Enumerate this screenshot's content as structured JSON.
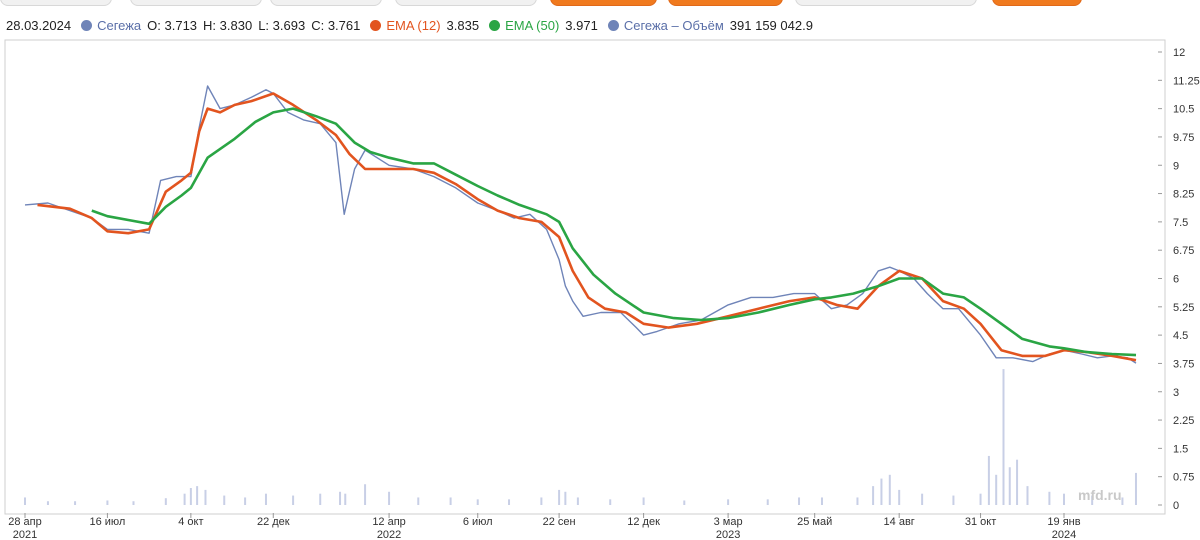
{
  "legend": {
    "date": "28.03.2024",
    "price": {
      "name": "Сегежа",
      "color": "#6f84b8",
      "o": "O: 3.713",
      "h": "H: 3.830",
      "l": "L: 3.693",
      "c": "C: 3.761"
    },
    "ema12": {
      "name": "EMA (12)",
      "value": "3.835",
      "color": "#e2541f"
    },
    "ema50": {
      "name": "EMA (50)",
      "value": "3.971",
      "color": "#2aa544"
    },
    "volume": {
      "name": "Сегежа – Объём",
      "value": "391 159 042.9",
      "color": "#6f84b8"
    }
  },
  "watermark": "mfd.ru",
  "chart_data": {
    "type": "line",
    "y_ticks": [
      "12",
      "11.25",
      "10.5",
      "9.75",
      "9",
      "8.25",
      "7.5",
      "6.75",
      "6",
      "5.25",
      "4.5",
      "3.75",
      "3",
      "2.25",
      "1.5",
      "0.75",
      "0"
    ],
    "ylim": [
      0,
      12
    ],
    "x_ticks": [
      {
        "label": "28 апр",
        "year": "2021"
      },
      {
        "label": "16 июл",
        "year": ""
      },
      {
        "label": "4 окт",
        "year": ""
      },
      {
        "label": "22 дек",
        "year": ""
      },
      {
        "label": "12 апр",
        "year": "2022"
      },
      {
        "label": "6 июл",
        "year": ""
      },
      {
        "label": "22 сен",
        "year": ""
      },
      {
        "label": "12 дек",
        "year": ""
      },
      {
        "label": "3 мар",
        "year": "2023"
      },
      {
        "label": "25 май",
        "year": ""
      },
      {
        "label": "14 авг",
        "year": ""
      },
      {
        "label": "31 окт",
        "year": ""
      },
      {
        "label": "19 янв",
        "year": "2024"
      }
    ],
    "series": [
      {
        "name": "Сегежа",
        "color": "#6f84b8",
        "x": [
          "2021-04-28",
          "2021-05-20",
          "2021-06-10",
          "2021-07-01",
          "2021-07-16",
          "2021-08-05",
          "2021-08-25",
          "2021-09-05",
          "2021-09-20",
          "2021-10-04",
          "2021-10-12",
          "2021-10-20",
          "2021-11-01",
          "2021-11-15",
          "2021-12-01",
          "2021-12-15",
          "2021-12-22",
          "2022-01-05",
          "2022-01-20",
          "2022-02-05",
          "2022-02-20",
          "2022-02-28",
          "2022-03-10",
          "2022-03-20",
          "2022-04-12",
          "2022-05-05",
          "2022-05-25",
          "2022-06-15",
          "2022-07-06",
          "2022-07-25",
          "2022-08-10",
          "2022-08-25",
          "2022-09-10",
          "2022-09-22",
          "2022-09-28",
          "2022-10-05",
          "2022-10-15",
          "2022-11-01",
          "2022-11-20",
          "2022-12-05",
          "2022-12-12",
          "2022-12-25",
          "2023-01-15",
          "2023-02-05",
          "2023-03-03",
          "2023-03-25",
          "2023-04-15",
          "2023-05-05",
          "2023-05-25",
          "2023-06-10",
          "2023-06-25",
          "2023-07-10",
          "2023-07-25",
          "2023-08-05",
          "2023-08-14",
          "2023-08-28",
          "2023-09-10",
          "2023-09-25",
          "2023-10-10",
          "2023-10-31",
          "2023-11-15",
          "2023-12-01",
          "2023-12-20",
          "2024-01-05",
          "2024-01-19",
          "2024-02-05",
          "2024-02-20",
          "2024-03-05",
          "2024-03-20",
          "2024-03-28"
        ],
        "values": [
          7.95,
          8.0,
          7.8,
          7.6,
          7.3,
          7.3,
          7.2,
          8.6,
          8.7,
          8.7,
          10.0,
          11.1,
          10.5,
          10.6,
          10.8,
          11.0,
          10.9,
          10.4,
          10.2,
          10.1,
          9.6,
          7.7,
          8.9,
          9.4,
          9.0,
          8.9,
          8.7,
          8.4,
          8.0,
          7.8,
          7.6,
          7.7,
          7.3,
          6.5,
          5.8,
          5.4,
          5.0,
          5.1,
          5.1,
          4.7,
          4.5,
          4.6,
          4.8,
          4.9,
          5.3,
          5.5,
          5.5,
          5.6,
          5.6,
          5.2,
          5.3,
          5.6,
          6.2,
          6.3,
          6.2,
          6.0,
          5.6,
          5.2,
          5.2,
          4.5,
          3.9,
          3.9,
          3.8,
          4.0,
          4.1,
          4.0,
          3.9,
          3.95,
          3.9,
          3.76
        ]
      },
      {
        "name": "EMA (12)",
        "color": "#e2541f",
        "x": [
          "2021-05-10",
          "2021-06-10",
          "2021-07-01",
          "2021-07-16",
          "2021-08-05",
          "2021-08-25",
          "2021-09-10",
          "2021-09-25",
          "2021-10-04",
          "2021-10-12",
          "2021-10-20",
          "2021-11-01",
          "2021-11-15",
          "2021-12-01",
          "2021-12-22",
          "2022-01-10",
          "2022-02-01",
          "2022-02-20",
          "2022-03-05",
          "2022-03-20",
          "2022-04-12",
          "2022-05-05",
          "2022-05-25",
          "2022-06-15",
          "2022-07-06",
          "2022-07-25",
          "2022-08-15",
          "2022-09-05",
          "2022-09-22",
          "2022-10-05",
          "2022-10-20",
          "2022-11-05",
          "2022-11-25",
          "2022-12-12",
          "2023-01-05",
          "2023-02-01",
          "2023-03-03",
          "2023-04-01",
          "2023-05-01",
          "2023-05-25",
          "2023-06-15",
          "2023-07-05",
          "2023-07-25",
          "2023-08-14",
          "2023-09-05",
          "2023-09-25",
          "2023-10-15",
          "2023-10-31",
          "2023-11-20",
          "2023-12-10",
          "2024-01-01",
          "2024-01-19",
          "2024-02-10",
          "2024-03-05",
          "2024-03-28"
        ],
        "values": [
          7.95,
          7.85,
          7.6,
          7.25,
          7.2,
          7.3,
          8.3,
          8.6,
          8.8,
          9.9,
          10.5,
          10.4,
          10.6,
          10.7,
          10.9,
          10.6,
          10.2,
          9.8,
          9.3,
          8.9,
          8.9,
          8.9,
          8.8,
          8.5,
          8.1,
          7.8,
          7.6,
          7.5,
          7.1,
          6.2,
          5.5,
          5.2,
          5.1,
          4.8,
          4.7,
          4.8,
          5.0,
          5.2,
          5.4,
          5.5,
          5.3,
          5.2,
          5.8,
          6.2,
          6.0,
          5.4,
          5.2,
          4.8,
          4.1,
          3.95,
          3.95,
          4.1,
          4.05,
          3.95,
          3.835
        ]
      },
      {
        "name": "EMA (50)",
        "color": "#2aa544",
        "x": [
          "2021-07-01",
          "2021-07-16",
          "2021-08-05",
          "2021-08-25",
          "2021-09-10",
          "2021-09-25",
          "2021-10-04",
          "2021-10-20",
          "2021-11-15",
          "2021-12-05",
          "2021-12-22",
          "2022-01-10",
          "2022-02-01",
          "2022-02-20",
          "2022-03-10",
          "2022-03-25",
          "2022-04-12",
          "2022-05-05",
          "2022-05-25",
          "2022-06-15",
          "2022-07-06",
          "2022-07-25",
          "2022-08-15",
          "2022-09-10",
          "2022-09-22",
          "2022-10-05",
          "2022-10-25",
          "2022-11-15",
          "2022-12-12",
          "2023-01-10",
          "2023-02-05",
          "2023-03-03",
          "2023-04-01",
          "2023-05-01",
          "2023-05-25",
          "2023-06-10",
          "2023-07-01",
          "2023-07-25",
          "2023-08-14",
          "2023-09-05",
          "2023-09-25",
          "2023-10-15",
          "2023-10-31",
          "2023-11-20",
          "2023-12-10",
          "2024-01-05",
          "2024-01-19",
          "2024-02-10",
          "2024-03-05",
          "2024-03-28"
        ],
        "values": [
          7.8,
          7.65,
          7.55,
          7.45,
          7.9,
          8.2,
          8.4,
          9.2,
          9.7,
          10.15,
          10.4,
          10.5,
          10.3,
          10.1,
          9.6,
          9.35,
          9.2,
          9.05,
          9.05,
          8.75,
          8.45,
          8.2,
          7.95,
          7.7,
          7.5,
          6.8,
          6.1,
          5.6,
          5.1,
          4.95,
          4.9,
          4.95,
          5.1,
          5.3,
          5.45,
          5.5,
          5.6,
          5.8,
          6.0,
          6.0,
          5.6,
          5.5,
          5.2,
          4.8,
          4.4,
          4.2,
          4.15,
          4.05,
          4.0,
          3.971
        ]
      },
      {
        "name": "Сегежа – Объём",
        "color": "#c8cfe6",
        "type": "bar",
        "x": [
          "2021-04-28",
          "2021-05-20",
          "2021-06-15",
          "2021-07-16",
          "2021-08-10",
          "2021-09-10",
          "2021-09-28",
          "2021-10-04",
          "2021-10-10",
          "2021-10-18",
          "2021-11-05",
          "2021-11-25",
          "2021-12-15",
          "2022-01-10",
          "2022-02-05",
          "2022-02-24",
          "2022-03-01",
          "2022-03-20",
          "2022-04-12",
          "2022-05-10",
          "2022-06-10",
          "2022-07-06",
          "2022-08-05",
          "2022-09-05",
          "2022-09-22",
          "2022-09-28",
          "2022-10-10",
          "2022-11-10",
          "2022-12-12",
          "2023-01-20",
          "2023-03-03",
          "2023-04-10",
          "2023-05-10",
          "2023-06-01",
          "2023-07-05",
          "2023-07-20",
          "2023-07-28",
          "2023-08-05",
          "2023-08-14",
          "2023-09-05",
          "2023-10-05",
          "2023-10-31",
          "2023-11-08",
          "2023-11-15",
          "2023-11-22",
          "2023-11-28",
          "2023-12-05",
          "2023-12-15",
          "2024-01-05",
          "2024-01-19",
          "2024-02-15",
          "2024-03-15",
          "2024-03-28"
        ],
        "values": [
          0.2,
          0.1,
          0.1,
          0.12,
          0.1,
          0.18,
          0.3,
          0.45,
          0.5,
          0.4,
          0.25,
          0.2,
          0.3,
          0.25,
          0.3,
          0.35,
          0.3,
          0.55,
          0.35,
          0.2,
          0.2,
          0.15,
          0.15,
          0.2,
          0.4,
          0.35,
          0.2,
          0.15,
          0.2,
          0.12,
          0.15,
          0.15,
          0.2,
          0.2,
          0.2,
          0.5,
          0.7,
          0.8,
          0.4,
          0.3,
          0.25,
          0.3,
          1.3,
          0.8,
          3.6,
          1.0,
          1.2,
          0.5,
          0.35,
          0.3,
          0.25,
          0.2,
          0.85
        ]
      }
    ]
  }
}
